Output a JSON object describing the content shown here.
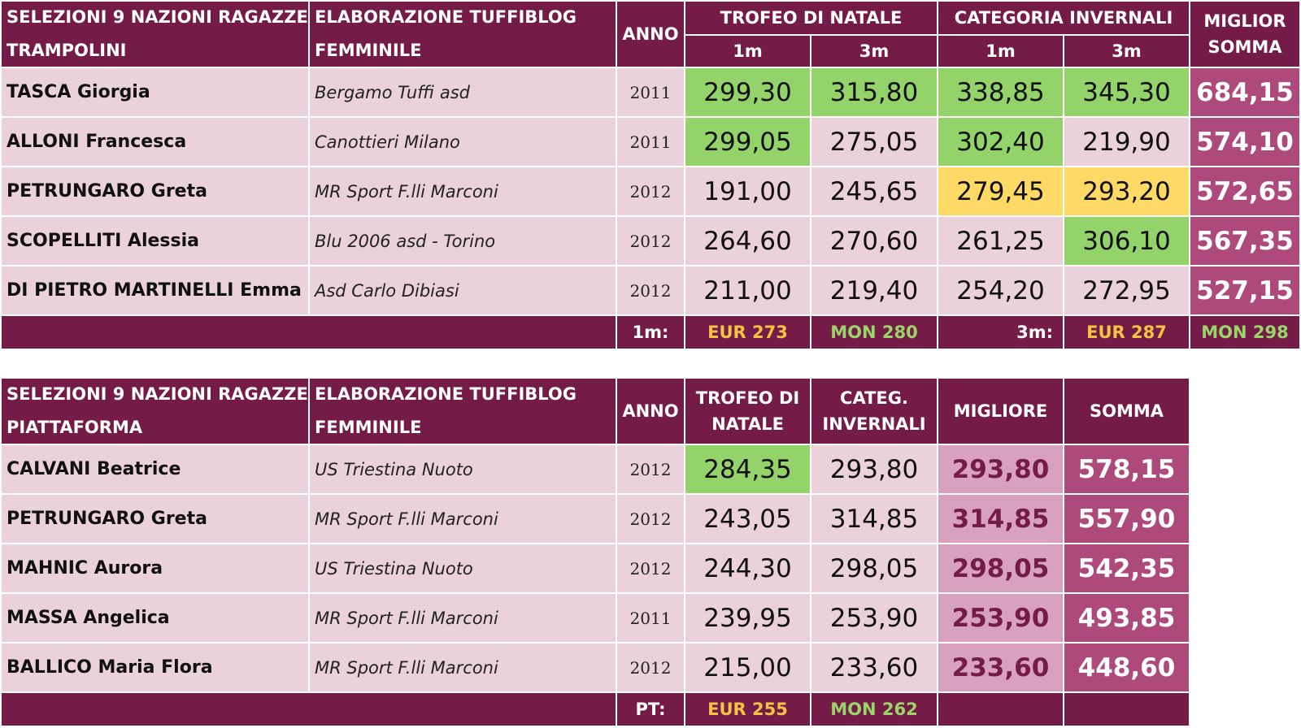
{
  "table1": {
    "header": {
      "title_line1": "SELEZIONI 9 NAZIONI RAGAZZE",
      "title_line2": "TRAMPOLINI",
      "club_line1": "ELABORAZIONE TUFFIBLOG",
      "club_line2": "FEMMINILE",
      "anno": "ANNO",
      "trofeo": "TROFEO DI NATALE",
      "categoria": "CATEGORIA INVERNALI",
      "sub_1m_a": "1m",
      "sub_3m_a": "3m",
      "sub_1m_b": "1m",
      "sub_3m_b": "3m",
      "miglior_line1": "MIGLIOR",
      "miglior_line2": "SOMMA"
    },
    "rows": [
      {
        "name": "TASCA Giorgia",
        "club": "Bergamo Tuffi asd",
        "year": "2011",
        "tn1": "299,30",
        "tn3": "315,80",
        "ci1": "338,85",
        "ci3": "345,30",
        "best": "684,15"
      },
      {
        "name": "ALLONI Francesca",
        "club": "Canottieri Milano",
        "year": "2011",
        "tn1": "299,05",
        "tn3": "275,05",
        "ci1": "302,40",
        "ci3": "219,90",
        "best": "574,10"
      },
      {
        "name": "PETRUNGARO Greta",
        "club": "MR Sport F.lli Marconi",
        "year": "2012",
        "tn1": "191,00",
        "tn3": "245,65",
        "ci1": "279,45",
        "ci3": "293,20",
        "best": "572,65"
      },
      {
        "name": "SCOPELLITI Alessia",
        "club": "Blu 2006 asd - Torino",
        "year": "2012",
        "tn1": "264,60",
        "tn3": "270,60",
        "ci1": "261,25",
        "ci3": "306,10",
        "best": "567,35"
      },
      {
        "name": "DI PIETRO MARTINELLI Emma",
        "club": "Asd Carlo Dibiasi",
        "year": "2012",
        "tn1": "211,00",
        "tn3": "219,40",
        "ci1": "254,20",
        "ci3": "272,95",
        "best": "527,15"
      }
    ],
    "footer": {
      "label_1m": "1m:",
      "eur_1m": "EUR 273",
      "mon_1m": "MON 280",
      "label_3m": "3m:",
      "eur_3m": "EUR 287",
      "mon_3m": "MON 298"
    }
  },
  "table2": {
    "header": {
      "title_line1": "SELEZIONI 9 NAZIONI RAGAZZE",
      "title_line2": "PIATTAFORMA",
      "club_line1": "ELABORAZIONE TUFFIBLOG",
      "club_line2": "FEMMINILE",
      "anno": "ANNO",
      "trofeo_line1": "TROFEO DI",
      "trofeo_line2": "NATALE",
      "categ_line1": "CATEG.",
      "categ_line2": "INVERNALI",
      "migliore": "MIGLIORE",
      "somma": "SOMMA"
    },
    "rows": [
      {
        "name": "CALVANI Beatrice",
        "club": "US Triestina Nuoto",
        "year": "2012",
        "tn": "284,35",
        "ci": "293,80",
        "migliore": "293,80",
        "somma": "578,15"
      },
      {
        "name": "PETRUNGARO Greta",
        "club": "MR Sport F.lli Marconi",
        "year": "2012",
        "tn": "243,05",
        "ci": "314,85",
        "migliore": "314,85",
        "somma": "557,90"
      },
      {
        "name": "MAHNIC Aurora",
        "club": "US Triestina Nuoto",
        "year": "2012",
        "tn": "244,30",
        "ci": "298,05",
        "migliore": "298,05",
        "somma": "542,35"
      },
      {
        "name": "MASSA Angelica",
        "club": "MR Sport F.lli Marconi",
        "year": "2011",
        "tn": "239,95",
        "ci": "253,90",
        "migliore": "253,90",
        "somma": "493,85"
      },
      {
        "name": "BALLICO Maria Flora",
        "club": "MR Sport F.lli Marconi",
        "year": "2012",
        "tn": "215,00",
        "ci": "233,60",
        "migliore": "233,60",
        "somma": "448,60"
      }
    ],
    "footer": {
      "label": "PT:",
      "eur": "EUR 255",
      "mon": "MON 262"
    }
  }
}
